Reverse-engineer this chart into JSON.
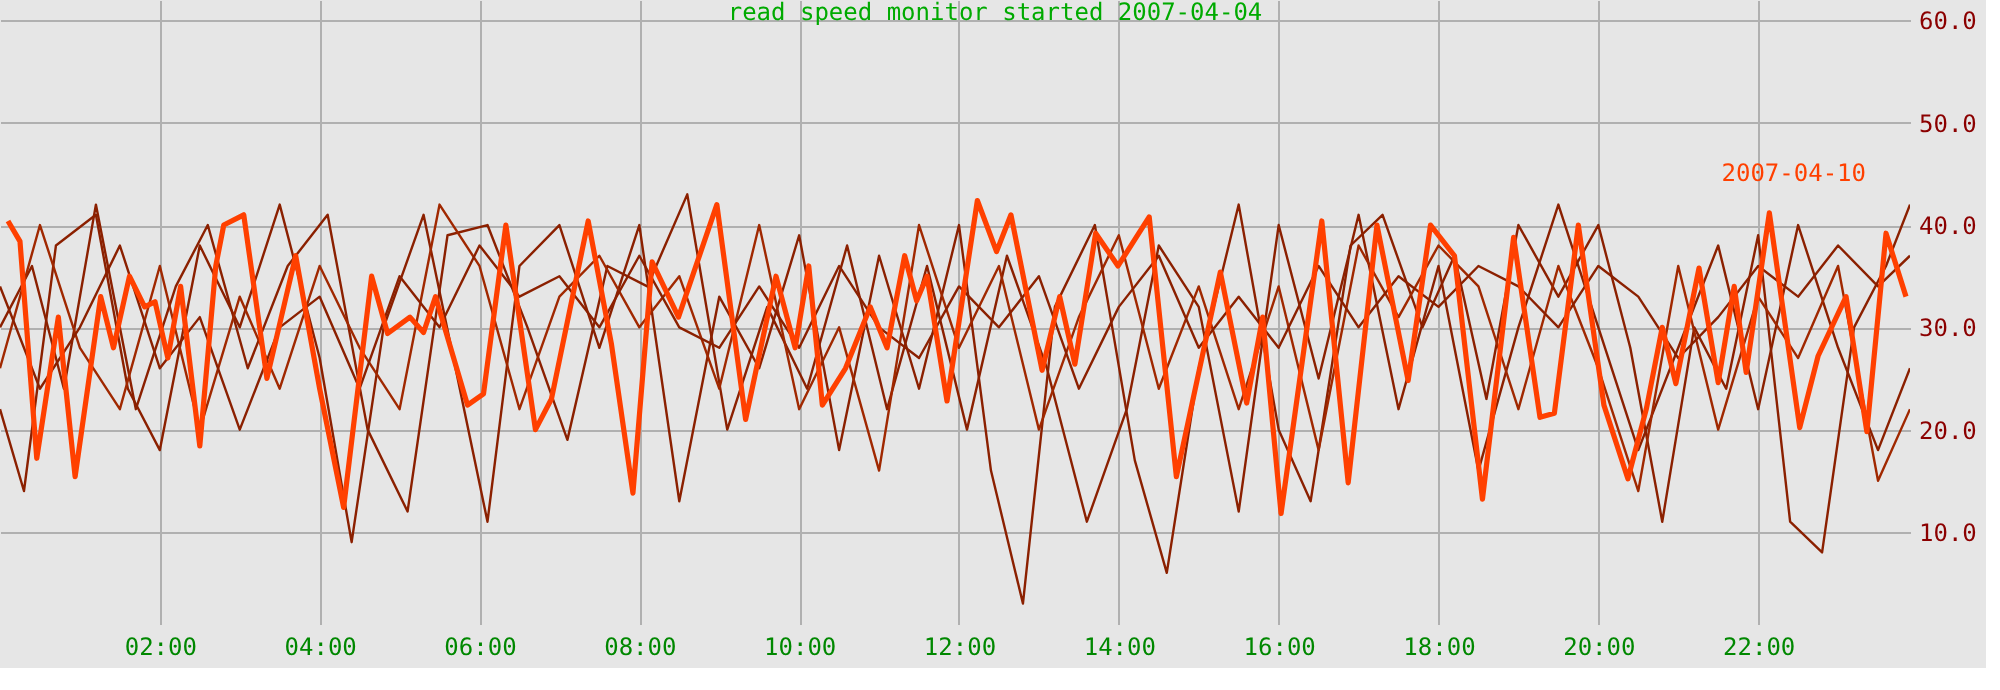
{
  "chart_data": {
    "type": "line",
    "title": "read speed monitor started 2007-04-04",
    "xlim": [
      0,
      23.9
    ],
    "ylim": [
      1,
      62
    ],
    "xticks": [
      {
        "value": 2,
        "label": "02:00"
      },
      {
        "value": 4,
        "label": "04:00"
      },
      {
        "value": 6,
        "label": "06:00"
      },
      {
        "value": 8,
        "label": "08:00"
      },
      {
        "value": 10,
        "label": "10:00"
      },
      {
        "value": 12,
        "label": "12:00"
      },
      {
        "value": 14,
        "label": "14:00"
      },
      {
        "value": 16,
        "label": "16:00"
      },
      {
        "value": 18,
        "label": "18:00"
      },
      {
        "value": 20,
        "label": "20:00"
      },
      {
        "value": 22,
        "label": "22:00"
      }
    ],
    "yticks": [
      {
        "value": 10,
        "label": "10.0"
      },
      {
        "value": 20,
        "label": "20.0"
      },
      {
        "value": 30,
        "label": "30.0"
      },
      {
        "value": 40,
        "label": "40.0"
      },
      {
        "value": 50,
        "label": "50.0"
      },
      {
        "value": 60,
        "label": "60.0"
      }
    ],
    "grid": true,
    "legend": false,
    "marker": "none",
    "line_style": "solid",
    "series": [
      {
        "color": "#8b2000",
        "x": [
          0,
          0.3,
          0.7,
          1.2,
          1.6,
          2.0,
          2.5,
          3.0,
          3.5,
          4.0,
          4.4,
          4.8,
          5.3,
          5.7,
          6.1,
          6.5,
          7.0,
          7.5,
          8.0,
          8.5,
          9.0,
          9.5,
          10.0,
          10.5,
          11.0,
          11.5,
          12.0,
          12.4,
          12.8,
          13.2,
          13.7,
          14.2,
          14.6,
          15.0,
          15.5,
          16.0,
          16.4,
          16.9,
          17.3,
          17.8,
          18.2,
          18.6,
          19.0,
          19.5,
          20.0,
          20.4,
          20.8,
          21.2,
          21.6,
          22.0,
          22.4,
          22.8,
          23.2,
          23.6,
          23.9
        ],
        "values": [
          22,
          14,
          38,
          41,
          24,
          18,
          38,
          30,
          42,
          27,
          9,
          30,
          41,
          26,
          11,
          36,
          40,
          28,
          40,
          13,
          33,
          26,
          39,
          18,
          37,
          24,
          40,
          16,
          3,
          32,
          40,
          17,
          6,
          26,
          42,
          20,
          13,
          38,
          41,
          30,
          37,
          23,
          40,
          33,
          40,
          28,
          11,
          30,
          24,
          39,
          11,
          8,
          30,
          36,
          42
        ]
      },
      {
        "color": "#8b2000",
        "x": [
          0,
          0.4,
          0.8,
          1.2,
          1.7,
          2.2,
          2.6,
          3.1,
          3.6,
          4.1,
          4.6,
          5.1,
          5.6,
          6.1,
          6.6,
          7.1,
          7.6,
          8.1,
          8.6,
          9.1,
          9.6,
          10.1,
          10.6,
          11.1,
          11.6,
          12.1,
          12.6,
          13.1,
          13.6,
          14.1,
          14.5,
          15.0,
          15.5,
          16.0,
          16.5,
          17.0,
          17.5,
          18.0,
          18.5,
          19.0,
          19.5,
          20.0,
          20.5,
          21.0,
          21.5,
          22.0,
          22.5,
          23.0,
          23.5,
          23.9
        ],
        "values": [
          30,
          36,
          24,
          42,
          22,
          34,
          40,
          26,
          36,
          41,
          20,
          12,
          39,
          40,
          30,
          19,
          36,
          34,
          43,
          20,
          32,
          24,
          38,
          22,
          36,
          20,
          37,
          26,
          11,
          22,
          38,
          32,
          12,
          40,
          25,
          41,
          22,
          36,
          16,
          30,
          42,
          30,
          18,
          28,
          38,
          22,
          40,
          28,
          18,
          26
        ]
      },
      {
        "color": "#a02800",
        "x": [
          0,
          0.5,
          1.0,
          1.5,
          2.0,
          2.5,
          3.0,
          3.5,
          4.0,
          4.5,
          5.0,
          5.5,
          6.0,
          6.5,
          7.0,
          7.5,
          8.0,
          8.5,
          9.0,
          9.5,
          10.0,
          10.5,
          11.0,
          11.5,
          12.0,
          12.5,
          13.0,
          13.5,
          14.0,
          14.5,
          15.0,
          15.5,
          16.0,
          16.5,
          17.0,
          17.5,
          18.0,
          18.5,
          19.0,
          19.5,
          20.0,
          20.5,
          21.0,
          21.5,
          22.0,
          22.5,
          23.0,
          23.5,
          23.9
        ],
        "values": [
          26,
          40,
          28,
          22,
          36,
          20,
          33,
          24,
          36,
          28,
          22,
          42,
          36,
          22,
          33,
          37,
          30,
          35,
          24,
          40,
          22,
          30,
          16,
          40,
          28,
          36,
          20,
          31,
          39,
          24,
          34,
          22,
          34,
          18,
          38,
          31,
          38,
          34,
          22,
          36,
          26,
          14,
          36,
          20,
          33,
          27,
          36,
          15,
          22
        ]
      },
      {
        "color": "#8b2000",
        "x": [
          0,
          0.5,
          1.0,
          1.5,
          2.0,
          2.5,
          3.0,
          3.5,
          4.0,
          4.5,
          5.0,
          5.5,
          6.0,
          6.5,
          7.0,
          7.5,
          8.0,
          8.5,
          9.0,
          9.5,
          10.0,
          10.5,
          11.0,
          11.5,
          12.0,
          12.5,
          13.0,
          13.5,
          14.0,
          14.5,
          15.0,
          15.5,
          16.0,
          16.5,
          17.0,
          17.5,
          18.0,
          18.5,
          19.0,
          19.5,
          20.0,
          20.5,
          21.0,
          21.5,
          22.0,
          22.5,
          23.0,
          23.5,
          23.9
        ],
        "values": [
          34,
          24,
          30,
          38,
          26,
          31,
          20,
          30,
          33,
          24,
          35,
          30,
          38,
          33,
          35,
          30,
          37,
          30,
          28,
          34,
          28,
          36,
          30,
          27,
          34,
          30,
          35,
          24,
          32,
          37,
          28,
          33,
          28,
          36,
          30,
          35,
          32,
          36,
          34,
          30,
          36,
          33,
          27,
          31,
          36,
          33,
          38,
          34,
          37
        ]
      },
      {
        "name": "2007-04-10",
        "color": "#ff4000",
        "x": [
          0.1,
          0.25,
          0.46,
          0.73,
          0.94,
          1.26,
          1.42,
          1.62,
          1.81,
          1.94,
          2.1,
          2.26,
          2.5,
          2.7,
          2.8,
          3.05,
          3.34,
          3.7,
          4.0,
          4.3,
          4.65,
          4.85,
          5.13,
          5.3,
          5.45,
          5.85,
          6.05,
          6.33,
          6.7,
          6.9,
          7.36,
          7.65,
          7.92,
          8.16,
          8.49,
          8.97,
          9.33,
          9.71,
          9.95,
          10.12,
          10.29,
          10.58,
          10.89,
          11.1,
          11.32,
          11.47,
          11.6,
          11.85,
          12.23,
          12.47,
          12.65,
          13.04,
          13.26,
          13.45,
          13.71,
          13.99,
          14.38,
          14.72,
          15.27,
          15.6,
          15.8,
          16.03,
          16.54,
          16.87,
          17.23,
          17.62,
          17.9,
          18.2,
          18.55,
          18.94,
          19.27,
          19.45,
          19.75,
          20.07,
          20.37,
          20.6,
          20.8,
          20.97,
          21.26,
          21.5,
          21.7,
          21.85,
          22.14,
          22.52,
          22.75,
          23.1,
          23.36,
          23.6,
          23.85
        ],
        "values": [
          40.4,
          38.4,
          17.2,
          31,
          15.4,
          33,
          28,
          35,
          32,
          32.5,
          27,
          34,
          18.4,
          36,
          40,
          41,
          25,
          37,
          24,
          12.4,
          35,
          29.4,
          31,
          29.5,
          33,
          22.4,
          23.5,
          40,
          20,
          23,
          40.4,
          28.4,
          13.8,
          36.4,
          31,
          42,
          21,
          35,
          28,
          36,
          22.4,
          26,
          32,
          28,
          37,
          32.6,
          35,
          22.8,
          42.4,
          37.4,
          41,
          25.8,
          33,
          26.4,
          39.2,
          36,
          40.8,
          15.4,
          35.4,
          22.6,
          31,
          11.8,
          40.4,
          14.8,
          40,
          24.8,
          40,
          37,
          13.2,
          38.8,
          21.2,
          21.6,
          40,
          22.4,
          15.2,
          22,
          30,
          24.5,
          35.8,
          24.6,
          34,
          25.6,
          41.2,
          20.2,
          27.2,
          33,
          19.8,
          39.2,
          33
        ]
      }
    ]
  }
}
